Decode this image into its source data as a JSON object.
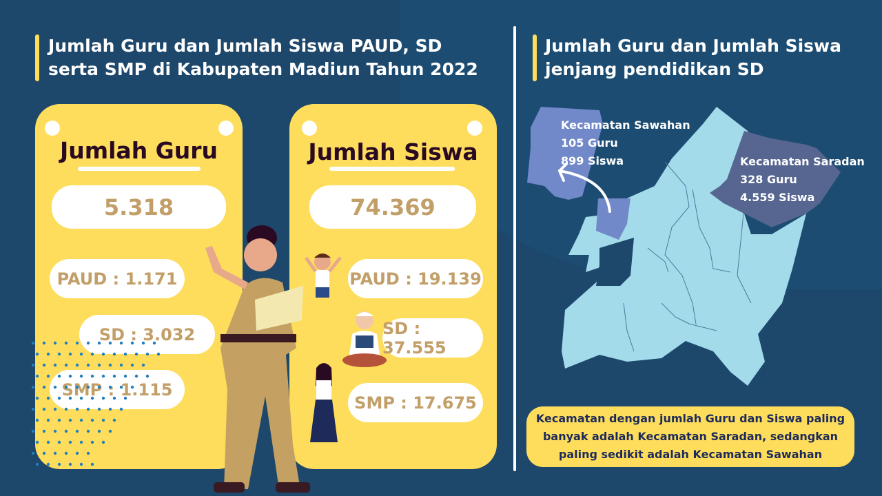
{
  "left": {
    "title": "Jumlah Guru dan Jumlah Siswa PAUD, SD serta SMP di Kabupaten Madiun Tahun 2022",
    "guru": {
      "heading": "Jumlah Guru",
      "total": "5.318",
      "paud": "PAUD : 1.171",
      "sd": "SD : 3.032",
      "smp": "SMP : 1.115"
    },
    "siswa": {
      "heading": "Jumlah Siswa",
      "total": "74.369",
      "paud": "PAUD : 19.139",
      "sd": "SD : 37.555",
      "smp": "SMP : 17.675"
    }
  },
  "right": {
    "title": "Jumlah Guru dan Jumlah Siswa jenjang pendidikan SD",
    "sawahan": {
      "name": "Kecamatan Sawahan",
      "guru": "105 Guru",
      "siswa": "899 Siswa"
    },
    "saradan": {
      "name": "Kecamatan Saradan",
      "guru": "328 Guru",
      "siswa": "4.559 Siswa"
    },
    "note": "Kecamatan dengan jumlah Guru dan Siswa paling banyak adalah Kecamatan Saradan, sedangkan paling sedikit adalah Kecamatan Sawahan"
  },
  "colors": {
    "background": "#1d476b",
    "accent": "#fedd5c",
    "value_text": "#c29f68",
    "map_base": "#a3dbeb",
    "map_sawahan": "#7189c8",
    "map_saradan": "#566690"
  }
}
